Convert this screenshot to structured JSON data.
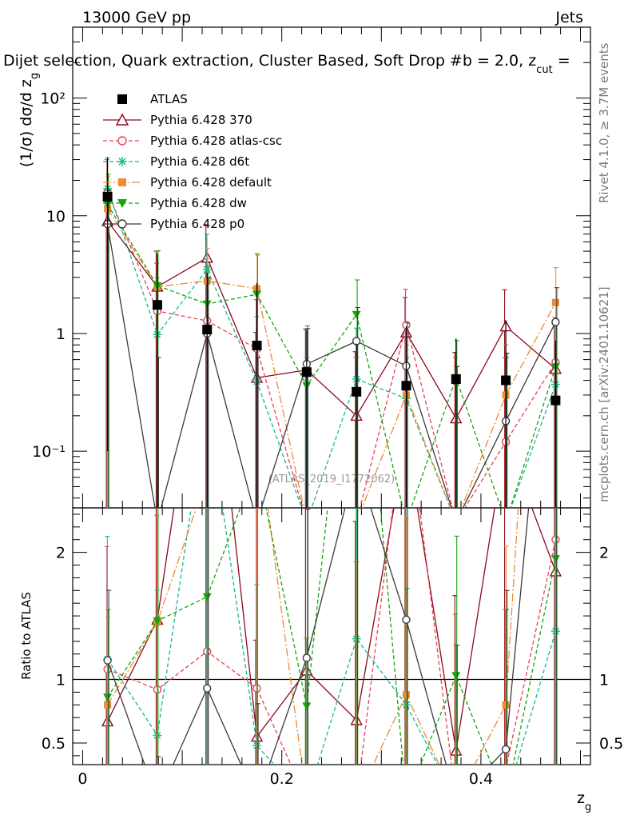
{
  "header": {
    "left": "13000 GeV pp",
    "right": "Jets",
    "selection": "Dijet selection, Quark extraction, Cluster Based, Soft Drop #b = 2.0, z",
    "selection_sub": "cut",
    "selection_tail": " ="
  },
  "side_labels": {
    "rivet": "Rivet 4.1.0, ≥ 3.7M events",
    "mcplots": "mcplots.cern.ch [arXiv:2401.10621]"
  },
  "watermark": "(ATLAS_2019_I1772062)",
  "chart_data": {
    "type": "scatter",
    "title": "Dijet selection, Quark extraction, Cluster Based, Soft Drop #b = 2.0, z_cut =",
    "x": [
      0.025,
      0.075,
      0.125,
      0.175,
      0.225,
      0.275,
      0.325,
      0.375,
      0.425,
      0.475
    ],
    "xlim": [
      -0.01,
      0.51
    ],
    "xticks": [
      0,
      0.2,
      0.4
    ],
    "xtick_labels": [
      "0",
      "0.2",
      "0.4"
    ],
    "xlabel": "z",
    "xlabel_sub": "g",
    "main": {
      "ylabel": "(1/σ) dσ/d z",
      "ylabel_sub": "g",
      "yscale": "log",
      "ylim": [
        0.033,
        400
      ],
      "yticks": [
        0.1,
        1,
        10,
        100
      ],
      "ytick_labels": [
        "10⁻¹",
        "1",
        "10",
        "10²"
      ]
    },
    "ratio": {
      "ylabel": "Ratio to ATLAS",
      "ylim": [
        0.33,
        2.35
      ],
      "yticks": [
        0.5,
        1,
        2
      ],
      "ytick_labels": [
        "0.5",
        "1",
        "2"
      ]
    },
    "reference": {
      "name": "ATLAS",
      "values": [
        14.5,
        1.75,
        1.08,
        0.79,
        0.47,
        0.32,
        0.36,
        0.41,
        0.4,
        0.27
      ],
      "err_up": [
        17,
        3.0,
        2.2,
        1.9,
        0.6,
        0.5,
        0.8,
        0.5,
        0.9,
        0.6
      ],
      "err_dn": [
        14.4,
        1.74,
        1.07,
        0.78,
        0.46,
        0.31,
        0.35,
        0.4,
        0.39,
        0.26
      ]
    },
    "series": [
      {
        "name": "Pythia 6.428 370",
        "color": "#8b0a1a",
        "dash": "",
        "marker": "triangle-open",
        "values": [
          9.0,
          2.5,
          4.4,
          0.42,
          0.49,
          0.2,
          1.02,
          0.19,
          1.15,
          0.5
        ],
        "err_up": [
          6,
          2.5,
          4,
          0.6,
          0.6,
          0.5,
          1.0,
          0.5,
          1.2,
          0.7
        ],
        "ratio": [
          0.67,
          1.47,
          4.1,
          0.55,
          1.07,
          0.68,
          2.9,
          0.44,
          2.9,
          1.85
        ]
      },
      {
        "name": "Pythia 6.428 atlas-csc",
        "color": "#e8405a",
        "dash": "5,3",
        "marker": "circle-open",
        "values": [
          16.0,
          1.55,
          1.28,
          0.74,
          0.025,
          0.025,
          1.18,
          0.025,
          0.12,
          0.57
        ],
        "err_up": [
          14,
          2.4,
          3,
          1.2,
          0.6,
          0.6,
          1.2,
          0.6,
          0.5,
          0.8
        ],
        "ratio": [
          1.08,
          0.92,
          1.22,
          0.93,
          0.05,
          0.05,
          3.2,
          0.05,
          0.3,
          2.1
        ]
      },
      {
        "name": "Pythia 6.428 d6t",
        "color": "#17b88a",
        "dash": "5,3",
        "marker": "asterisk",
        "values": [
          17.0,
          0.98,
          3.5,
          0.39,
          0.025,
          0.41,
          0.28,
          0.025,
          0.025,
          0.37
        ],
        "err_up": [
          14,
          2,
          3.5,
          1,
          0.6,
          0.7,
          0.8,
          0.5,
          0.6,
          0.8
        ],
        "ratio": [
          1.16,
          0.56,
          3.2,
          0.48,
          0.05,
          1.32,
          0.8,
          0.05,
          0.05,
          1.38
        ]
      },
      {
        "name": "Pythia 6.428 default",
        "color": "#f08a30",
        "dash": "10,3,2,3",
        "marker": "square",
        "values": [
          11.5,
          2.5,
          2.8,
          2.4,
          0.025,
          0.025,
          0.3,
          0.025,
          0.3,
          1.83
        ],
        "err_up": [
          10,
          2.5,
          2.5,
          2.4,
          0.6,
          0.6,
          0.5,
          0.5,
          0.5,
          1.8
        ],
        "ratio": [
          0.8,
          1.45,
          2.6,
          3.0,
          0.05,
          0.05,
          0.88,
          0.05,
          0.8,
          7.0
        ]
      },
      {
        "name": "Pythia 6.428 dw",
        "color": "#16a60c",
        "dash": "5,3",
        "marker": "triangle-down",
        "values": [
          12.5,
          2.55,
          1.78,
          2.15,
          0.36,
          1.45,
          0.025,
          0.42,
          0.025,
          0.52
        ],
        "err_up": [
          10,
          2.5,
          2,
          2.5,
          0.8,
          1.4,
          0.6,
          0.45,
          0.6,
          0.8
        ],
        "ratio": [
          0.86,
          1.46,
          1.65,
          2.7,
          0.79,
          4.5,
          0.05,
          1.03,
          0.05,
          1.95
        ]
      },
      {
        "name": "Pythia 6.428 p0",
        "color": "#3a3a3a",
        "dash": "",
        "marker": "circle-open",
        "values": [
          8.5,
          0.025,
          1.0,
          0.025,
          0.55,
          0.86,
          0.53,
          0.025,
          0.18,
          1.25
        ],
        "err_up": [
          8,
          0.6,
          2,
          0.6,
          0.55,
          0.8,
          0.7,
          0.5,
          0.5,
          1.2
        ],
        "ratio": [
          1.15,
          0.05,
          0.93,
          0.05,
          1.17,
          2.7,
          1.47,
          0.05,
          0.45,
          4.6
        ]
      }
    ]
  }
}
